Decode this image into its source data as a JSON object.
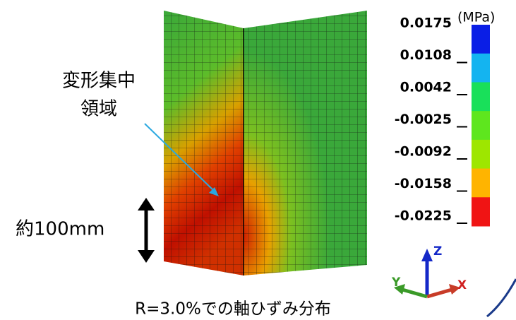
{
  "annotation": {
    "region_label": [
      "変形集中",
      "領域"
    ],
    "dimension_label": "約100mm"
  },
  "legend": {
    "unit": "(MPa)",
    "labels": [
      "0.0175",
      "0.0108",
      "0.0042",
      "-0.0025",
      "-0.0092",
      "-0.0158",
      "-0.0225"
    ],
    "colors": [
      "#0a1ee6",
      "#14b4f0",
      "#19e05a",
      "#5ee61e",
      "#9ee600",
      "#ffb400",
      "#f01414"
    ]
  },
  "axes": {
    "z": "Z",
    "y": "Y",
    "x": "X"
  },
  "caption": "R=3.0%での軸ひずみ分布"
}
